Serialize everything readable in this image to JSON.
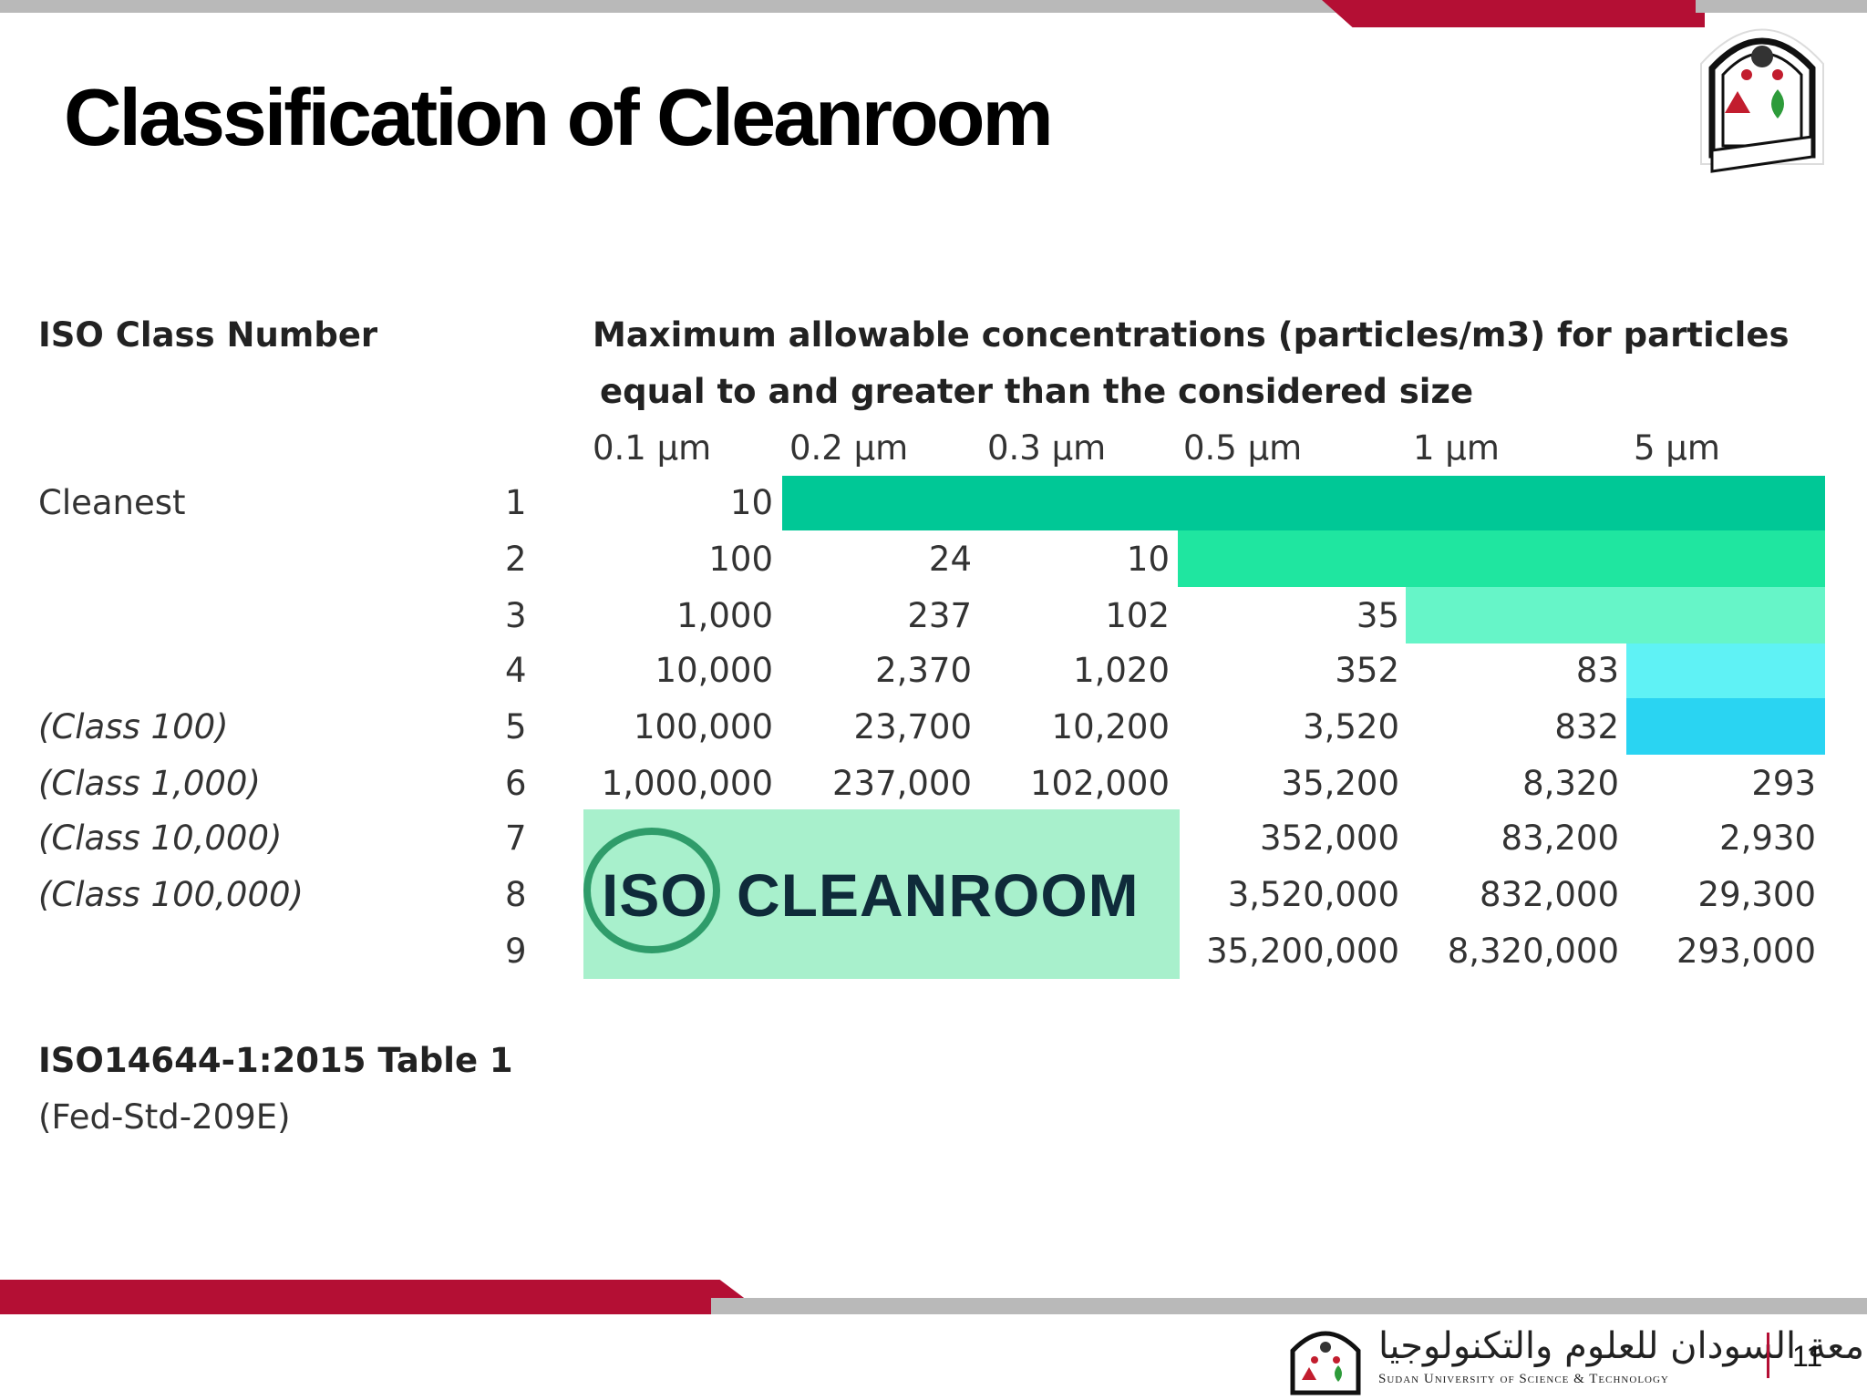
{
  "slide": {
    "title": "Classification of Cleanroom",
    "page_number": "11",
    "accent_color": "#b40f34",
    "bar_gray": "#b9b9b9"
  },
  "table": {
    "class_header": "ISO Class Number",
    "conc_header_line1": "Maximum allowable concentrations (particles/m3) for particles",
    "conc_header_line2": "equal to and greater than the considered size",
    "sizes": [
      "0.1 µm",
      "0.2 µm",
      "0.3 µm",
      "0.5 µm",
      "1 µm",
      "5 µm"
    ],
    "rows": [
      {
        "label": "Cleanest",
        "label_italic": false,
        "class": "1",
        "values": [
          "10",
          "",
          "",
          "",
          "",
          ""
        ]
      },
      {
        "label": "",
        "label_italic": false,
        "class": "2",
        "values": [
          "100",
          "24",
          "10",
          "",
          "",
          ""
        ]
      },
      {
        "label": "",
        "label_italic": false,
        "class": "3",
        "values": [
          "1,000",
          "237",
          "102",
          "35",
          "",
          ""
        ]
      },
      {
        "label": "",
        "label_italic": false,
        "class": "4",
        "values": [
          "10,000",
          "2,370",
          "1,020",
          "352",
          "83",
          ""
        ]
      },
      {
        "label": "(Class 100)",
        "label_italic": true,
        "class": "5",
        "values": [
          "100,000",
          "23,700",
          "10,200",
          "3,520",
          "832",
          ""
        ]
      },
      {
        "label": "(Class 1,000)",
        "label_italic": true,
        "class": "6",
        "values": [
          "1,000,000",
          "237,000",
          "102,000",
          "35,200",
          "8,320",
          "293"
        ]
      },
      {
        "label": "(Class 10,000)",
        "label_italic": true,
        "class": "7",
        "values": [
          "",
          "",
          "",
          "352,000",
          "83,200",
          "2,930"
        ]
      },
      {
        "label": "(Class 100,000)",
        "label_italic": true,
        "class": "8",
        "values": [
          "",
          "",
          "",
          "3,520,000",
          "832,000",
          "29,300"
        ]
      },
      {
        "label": "",
        "label_italic": false,
        "class": "9",
        "values": [
          "",
          "",
          "",
          "35,200,000",
          "8,320,000",
          "293,000"
        ]
      }
    ],
    "shade_colors": [
      "#00c896",
      "#1fe6a0",
      "#66f5c8",
      "#5ff2f5",
      "#2ad4f2"
    ],
    "source_line1": "ISO14644-1:2015 Table 1",
    "source_line2": "(Fed-Std-209E)"
  },
  "watermark": {
    "text_left": "ISO",
    "text_right": "CLEANROOM",
    "box_color": "#a8f0cc"
  },
  "footer": {
    "university_ar": "جامعة السودان للعلوم والتكنولوجيا",
    "university_en": "Sudan University of Science & Technology"
  }
}
